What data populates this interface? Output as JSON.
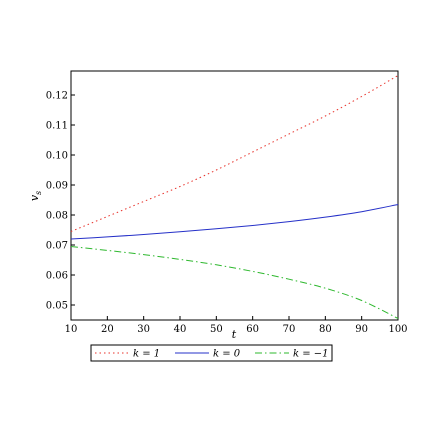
{
  "chart_data": {
    "type": "line",
    "xlabel": "t",
    "ylabel_main": "v",
    "ylabel_sub": "s",
    "xlim": [
      10,
      100
    ],
    "ylim": [
      0.045,
      0.128
    ],
    "xticks": [
      10,
      20,
      30,
      40,
      50,
      60,
      70,
      80,
      90,
      100
    ],
    "yticks": [
      0.05,
      0.06,
      0.07,
      0.08,
      0.09,
      0.1,
      0.11,
      0.12
    ],
    "ytick_labels": [
      "0.05",
      "0.06",
      "0.07",
      "0.08",
      "0.09",
      "0.10",
      "0.11",
      "0.12"
    ],
    "grid": false,
    "legend_position": "bottom",
    "x": [
      10,
      20,
      30,
      40,
      50,
      60,
      70,
      80,
      90,
      100
    ],
    "series": [
      {
        "name": "k = 1",
        "color": "#e8312a",
        "style": "dotted",
        "values": [
          0.0745,
          0.0795,
          0.0845,
          0.0895,
          0.095,
          0.101,
          0.107,
          0.113,
          0.1195,
          0.1265
        ]
      },
      {
        "name": "k = 0",
        "color": "#2530c8",
        "style": "solid",
        "values": [
          0.072,
          0.0727,
          0.0735,
          0.0744,
          0.0754,
          0.0765,
          0.0778,
          0.0793,
          0.0811,
          0.0835
        ]
      },
      {
        "name": "k = −1",
        "color": "#2eb82e",
        "style": "dashdot",
        "values": [
          0.0695,
          0.0682,
          0.0668,
          0.0652,
          0.0634,
          0.0612,
          0.0586,
          0.0556,
          0.0515,
          0.0455
        ]
      }
    ]
  }
}
